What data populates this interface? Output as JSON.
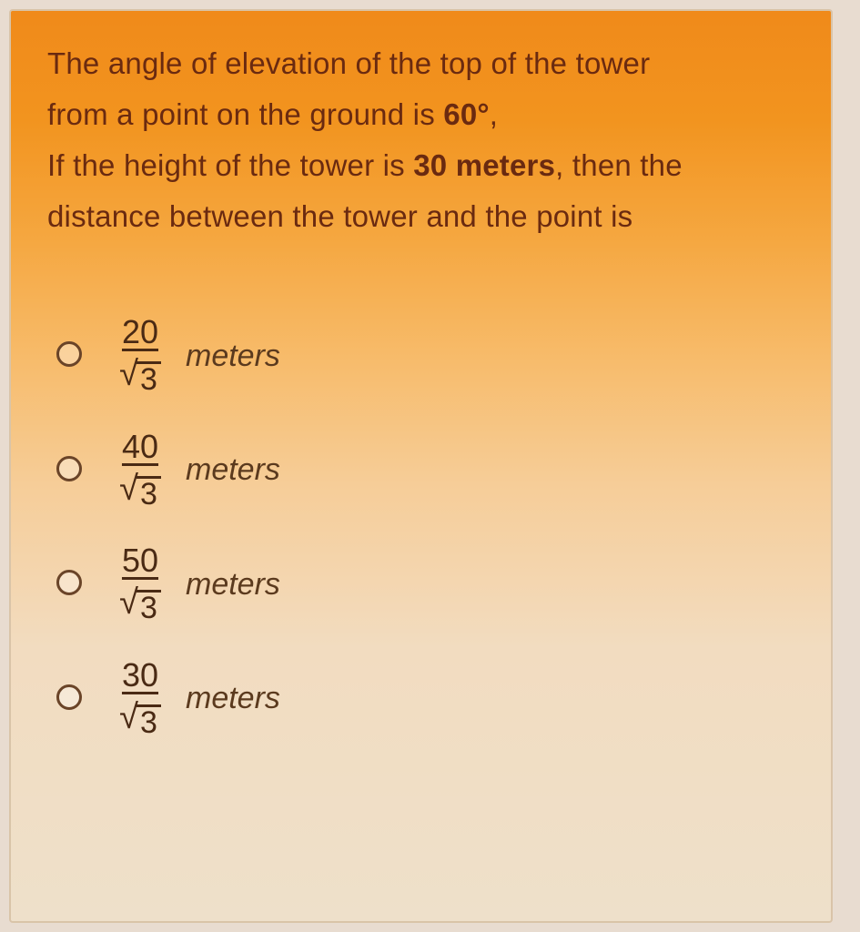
{
  "question": {
    "line1_a": "The angle of elevation of the top of the tower",
    "line2_a": "from a point on the ground is ",
    "line2_b": "60°",
    "line2_c": ",",
    "line3_a": "If the height of the tower is ",
    "line3_b": "30 meters",
    "line3_c": ", then the",
    "line4_a": "distance between the tower and the point is"
  },
  "options": [
    {
      "numerator": "20",
      "radicand": "3",
      "unit": "meters"
    },
    {
      "numerator": "40",
      "radicand": "3",
      "unit": "meters"
    },
    {
      "numerator": "50",
      "radicand": "3",
      "unit": "meters"
    },
    {
      "numerator": "30",
      "radicand": "3",
      "unit": "meters"
    }
  ],
  "style": {
    "question_color": "#6a2a10",
    "option_text_color": "#4a2a14",
    "unit_color": "#5b3a1e",
    "radio_border": "#6a4428",
    "gradient_top": "#f08a1a",
    "gradient_bottom": "#eee0ca",
    "card_border": "#d9c4a8",
    "question_fontsize": 33,
    "frac_fontsize": 36,
    "unit_fontsize": 34
  }
}
